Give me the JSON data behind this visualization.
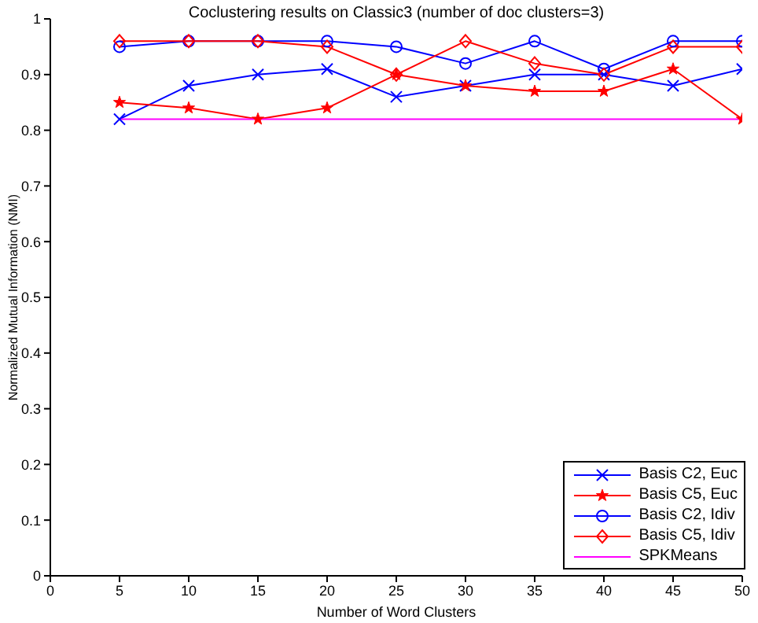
{
  "chart_data": {
    "type": "line",
    "title": "Coclustering results on Classic3 (number of doc clusters=3)",
    "xlabel": "Number of Word Clusters",
    "ylabel": "Normalized Mutual Information (NMI)",
    "x": [
      5,
      10,
      15,
      20,
      25,
      30,
      35,
      40,
      45,
      50
    ],
    "series": [
      {
        "name": "Basis C2, Euc",
        "color": "#0000ff",
        "marker": "cross",
        "values": [
          0.82,
          0.88,
          0.9,
          0.91,
          0.86,
          0.88,
          0.9,
          0.9,
          0.88,
          0.91
        ]
      },
      {
        "name": "Basis C5, Euc",
        "color": "#ff0000",
        "marker": "star",
        "values": [
          0.85,
          0.84,
          0.82,
          0.84,
          0.9,
          0.88,
          0.87,
          0.87,
          0.91,
          0.82
        ]
      },
      {
        "name": "Basis C2, Idiv",
        "color": "#0000ff",
        "marker": "circle",
        "values": [
          0.95,
          0.96,
          0.96,
          0.96,
          0.95,
          0.92,
          0.96,
          0.91,
          0.96,
          0.96
        ]
      },
      {
        "name": "Basis C5, Idiv",
        "color": "#ff0000",
        "marker": "diamond",
        "values": [
          0.96,
          0.96,
          0.96,
          0.95,
          0.9,
          0.96,
          0.92,
          0.9,
          0.95,
          0.95
        ]
      },
      {
        "name": "SPKMeans",
        "color": "#ff00ff",
        "marker": "none",
        "values": [
          0.82,
          0.82,
          0.82,
          0.82,
          0.82,
          0.82,
          0.82,
          0.82,
          0.82,
          0.82
        ]
      }
    ],
    "xlim": [
      0,
      50
    ],
    "xticks": [
      0,
      5,
      10,
      15,
      20,
      25,
      30,
      35,
      40,
      45,
      50
    ],
    "ylim": [
      0,
      1
    ],
    "yticks": [
      0,
      0.1,
      0.2,
      0.3,
      0.4,
      0.5,
      0.6,
      0.7,
      0.8,
      0.9,
      1
    ],
    "grid": false,
    "legend": "bottom right",
    "line_style": "solid"
  }
}
